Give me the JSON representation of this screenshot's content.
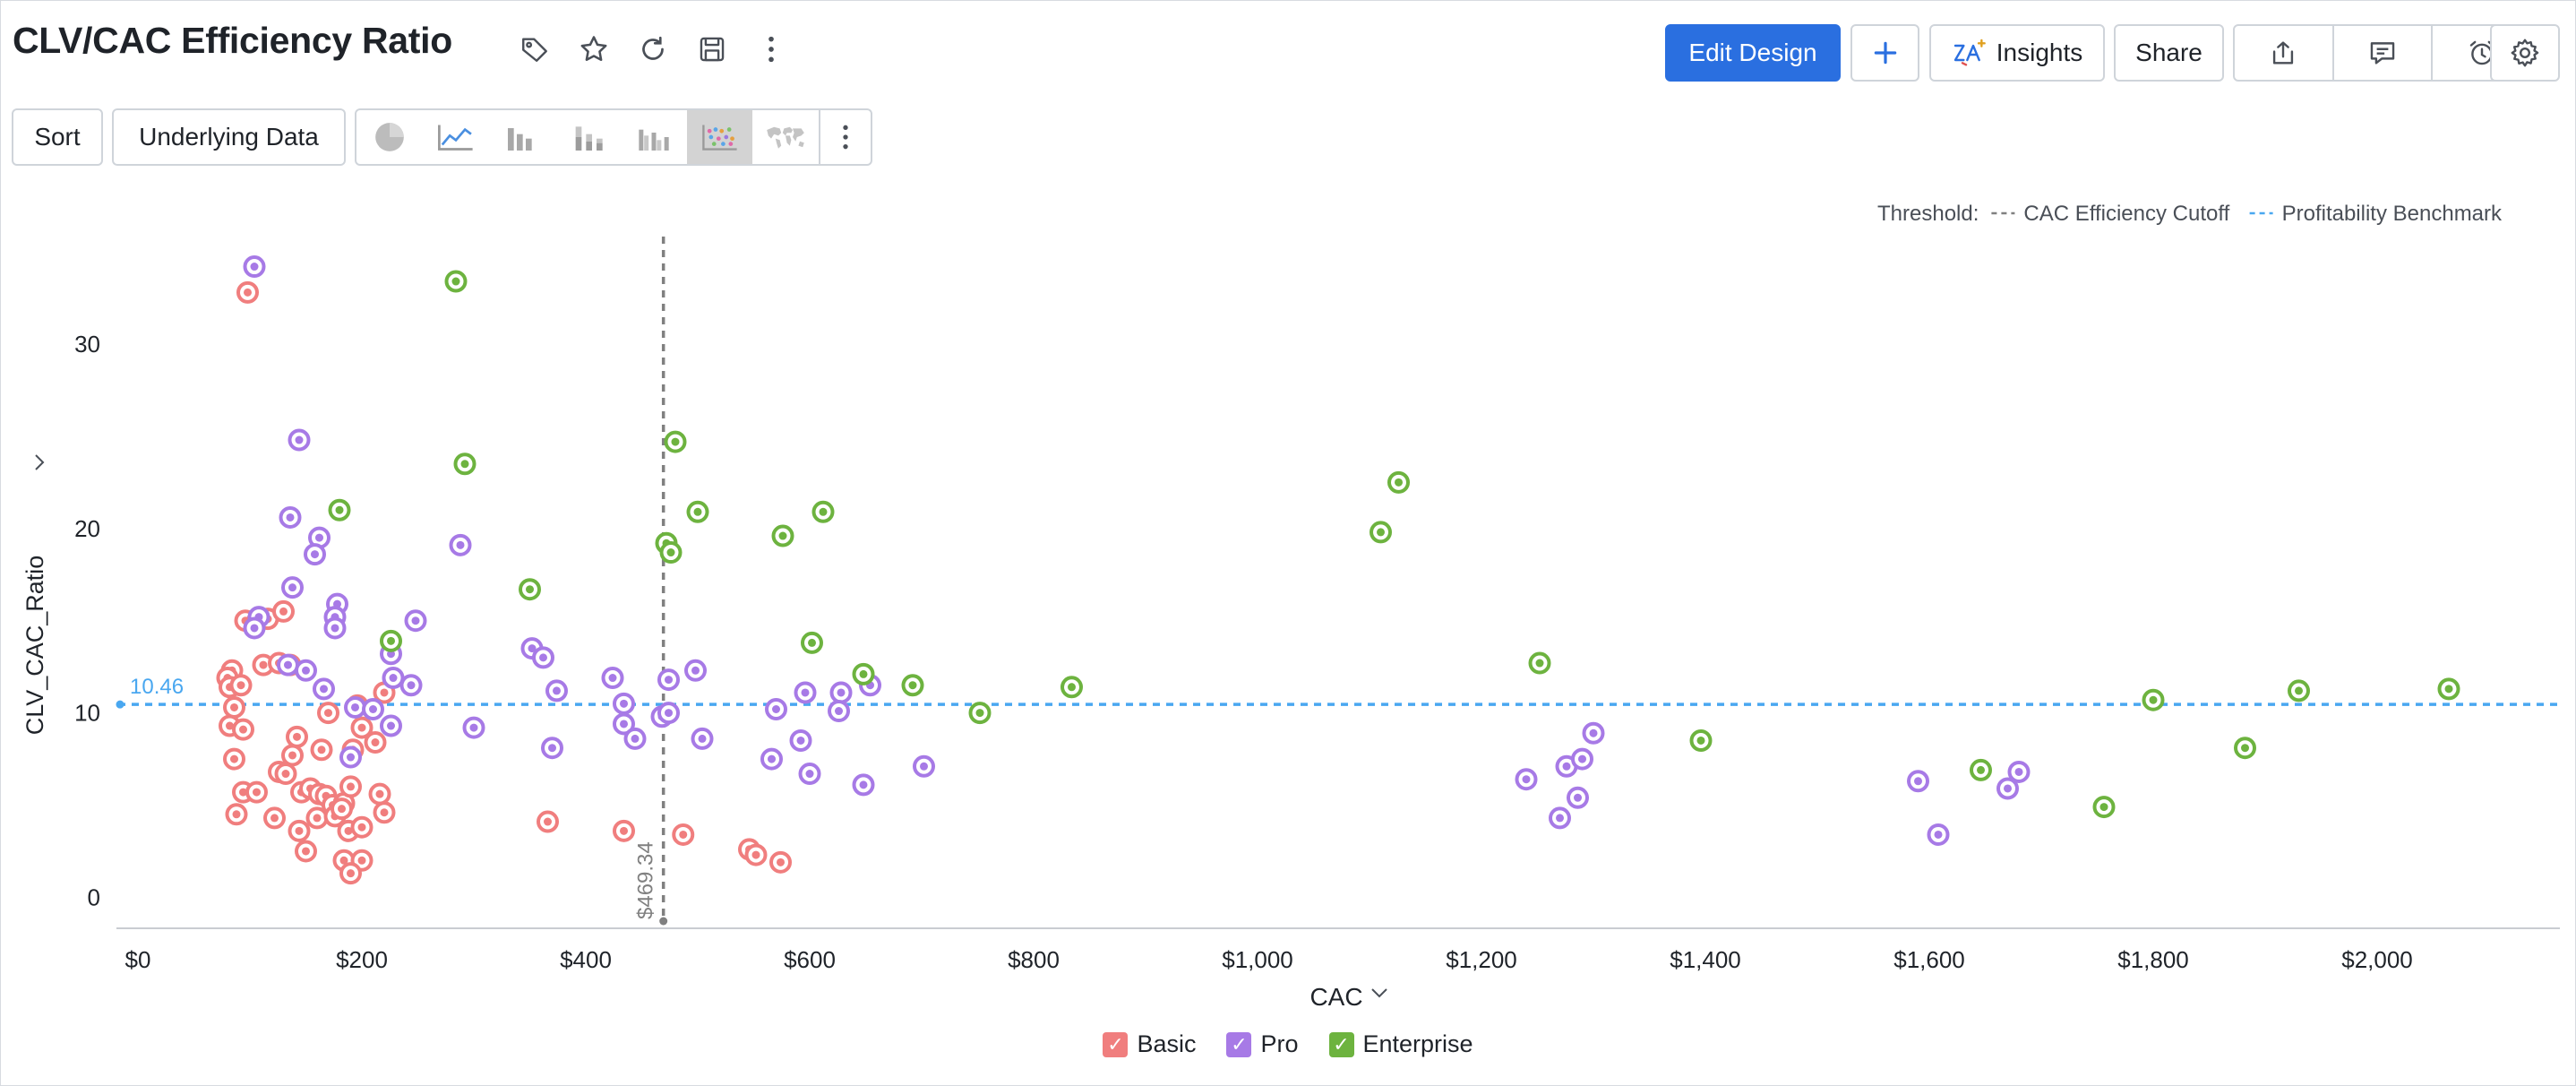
{
  "header": {
    "title": "CLV/CAC Efficiency Ratio",
    "icons": [
      "tag-icon",
      "star-icon",
      "refresh-icon",
      "save-icon",
      "more-vertical-icon"
    ],
    "edit_design_label": "Edit Design",
    "insights_label": "Insights",
    "share_label": "Share"
  },
  "toolbar": {
    "sort_label": "Sort",
    "underlying_data_label": "Underlying Data",
    "chart_types": [
      "pie",
      "line",
      "bar",
      "stacked-bar",
      "grouped-bar",
      "scatter",
      "map"
    ],
    "active_chart_type": "scatter"
  },
  "colors": {
    "basic": "#f07e7e",
    "pro": "#a77ae6",
    "enterprise": "#6db33f",
    "cutoff_line": "#808080",
    "benchmark_line": "#49a7f0",
    "primary_button": "#2a6fe0"
  },
  "chart_data": {
    "type": "scatter",
    "title": "CLV/CAC Efficiency Ratio",
    "xlabel": "CAC",
    "ylabel": "CLV_CAC_Ratio",
    "xlim": [
      0,
      2150
    ],
    "ylim": [
      -1,
      36
    ],
    "x_ticks": [
      0,
      200,
      400,
      600,
      800,
      1000,
      1200,
      1400,
      1600,
      1800,
      2000
    ],
    "x_tick_labels": [
      "$0",
      "$200",
      "$400",
      "$600",
      "$800",
      "$1,000",
      "$1,200",
      "$1,400",
      "$1,600",
      "$1,800",
      "$2,000"
    ],
    "y_ticks": [
      0,
      10,
      20,
      30
    ],
    "y_tick_labels": [
      "0",
      "10",
      "20",
      "30"
    ],
    "grid": false,
    "legend_position": "bottom",
    "threshold_legend": {
      "label": "Threshold:",
      "items": [
        {
          "name": "CAC Efficiency Cutoff",
          "style": "dashed",
          "color": "#808080"
        },
        {
          "name": "Profitability Benchmark",
          "style": "dashed",
          "color": "#49a7f0"
        }
      ]
    },
    "thresholds": [
      {
        "name": "CAC Efficiency Cutoff",
        "axis": "x",
        "value": 469.34,
        "label": "$469.34"
      },
      {
        "name": "Profitability Benchmark",
        "axis": "y",
        "value": 10.46,
        "label": "10.46"
      }
    ],
    "series": [
      {
        "name": "Basic",
        "color": "#f07e7e",
        "points": [
          [
            98,
            32.8
          ],
          [
            84,
            12.3
          ],
          [
            80,
            11.9
          ],
          [
            82,
            11.4
          ],
          [
            92,
            11.5
          ],
          [
            86,
            10.3
          ],
          [
            82,
            9.3
          ],
          [
            94,
            9.1
          ],
          [
            86,
            7.5
          ],
          [
            96,
            15
          ],
          [
            106,
            14.9
          ],
          [
            116,
            15.1
          ],
          [
            130,
            15.5
          ],
          [
            112,
            12.6
          ],
          [
            126,
            12.7
          ],
          [
            136,
            12.6
          ],
          [
            142,
            8.7
          ],
          [
            138,
            7.7
          ],
          [
            126,
            6.8
          ],
          [
            132,
            6.7
          ],
          [
            164,
            8
          ],
          [
            170,
            10
          ],
          [
            200,
            9.2
          ],
          [
            212,
            8.4
          ],
          [
            196,
            10.4
          ],
          [
            192,
            8
          ],
          [
            220,
            11.1
          ],
          [
            94,
            5.7
          ],
          [
            88,
            4.5
          ],
          [
            106,
            5.7
          ],
          [
            122,
            4.3
          ],
          [
            146,
            5.7
          ],
          [
            154,
            5.9
          ],
          [
            162,
            5.6
          ],
          [
            168,
            5.5
          ],
          [
            174,
            5
          ],
          [
            184,
            5.1
          ],
          [
            190,
            6
          ],
          [
            160,
            4.3
          ],
          [
            176,
            4.4
          ],
          [
            182,
            4.8
          ],
          [
            144,
            3.6
          ],
          [
            188,
            3.6
          ],
          [
            200,
            3.8
          ],
          [
            150,
            2.5
          ],
          [
            184,
            2
          ],
          [
            200,
            2
          ],
          [
            190,
            1.3
          ],
          [
            216,
            5.6
          ],
          [
            220,
            4.6
          ],
          [
            366,
            4.1
          ],
          [
            434,
            3.6
          ],
          [
            487,
            3.4
          ],
          [
            546,
            2.6
          ],
          [
            552,
            2.3
          ],
          [
            574,
            1.9
          ]
        ]
      },
      {
        "name": "Pro",
        "color": "#a77ae6",
        "points": [
          [
            104,
            34.2
          ],
          [
            144,
            24.8
          ],
          [
            136,
            20.6
          ],
          [
            162,
            19.5
          ],
          [
            158,
            18.6
          ],
          [
            138,
            16.8
          ],
          [
            178,
            15.9
          ],
          [
            176,
            15.2
          ],
          [
            108,
            15.2
          ],
          [
            104,
            14.6
          ],
          [
            176,
            14.6
          ],
          [
            248,
            15
          ],
          [
            226,
            13.2
          ],
          [
            228,
            11.9
          ],
          [
            244,
            11.5
          ],
          [
            166,
            11.3
          ],
          [
            134,
            12.6
          ],
          [
            150,
            12.3
          ],
          [
            194,
            10.3
          ],
          [
            210,
            10.2
          ],
          [
            226,
            9.3
          ],
          [
            190,
            7.6
          ],
          [
            288,
            19.1
          ],
          [
            300,
            9.2
          ],
          [
            352,
            13.5
          ],
          [
            362,
            13
          ],
          [
            374,
            11.2
          ],
          [
            370,
            8.1
          ],
          [
            424,
            11.9
          ],
          [
            434,
            10.5
          ],
          [
            434,
            9.4
          ],
          [
            444,
            8.6
          ],
          [
            468,
            9.8
          ],
          [
            474,
            11.8
          ],
          [
            474,
            10
          ],
          [
            498,
            12.3
          ],
          [
            504,
            8.6
          ],
          [
            566,
            7.5
          ],
          [
            570,
            10.2
          ],
          [
            592,
            8.5
          ],
          [
            596,
            11.1
          ],
          [
            600,
            6.7
          ],
          [
            628,
            11.1
          ],
          [
            626,
            10.1
          ],
          [
            648,
            6.1
          ],
          [
            654,
            11.5
          ],
          [
            702,
            7.1
          ],
          [
            1240,
            6.4
          ],
          [
            1270,
            4.3
          ],
          [
            1276,
            7.1
          ],
          [
            1286,
            5.4
          ],
          [
            1290,
            7.5
          ],
          [
            1300,
            8.9
          ],
          [
            1590,
            6.3
          ],
          [
            1608,
            3.4
          ],
          [
            1670,
            5.9
          ],
          [
            1680,
            6.8
          ]
        ]
      },
      {
        "name": "Enterprise",
        "color": "#6db33f",
        "points": [
          [
            284,
            33.4
          ],
          [
            292,
            23.5
          ],
          [
            180,
            21
          ],
          [
            226,
            13.9
          ],
          [
            350,
            16.7
          ],
          [
            472,
            19.2
          ],
          [
            476,
            18.7
          ],
          [
            480,
            24.7
          ],
          [
            500,
            20.9
          ],
          [
            576,
            19.6
          ],
          [
            612,
            20.9
          ],
          [
            602,
            13.8
          ],
          [
            648,
            12.1
          ],
          [
            692,
            11.5
          ],
          [
            752,
            10
          ],
          [
            834,
            11.4
          ],
          [
            1110,
            19.8
          ],
          [
            1126,
            22.5
          ],
          [
            1252,
            12.7
          ],
          [
            1396,
            8.5
          ],
          [
            1646,
            6.9
          ],
          [
            1756,
            4.9
          ],
          [
            1800,
            10.7
          ],
          [
            1882,
            8.1
          ],
          [
            1930,
            11.2
          ],
          [
            2064,
            11.3
          ]
        ]
      }
    ]
  }
}
